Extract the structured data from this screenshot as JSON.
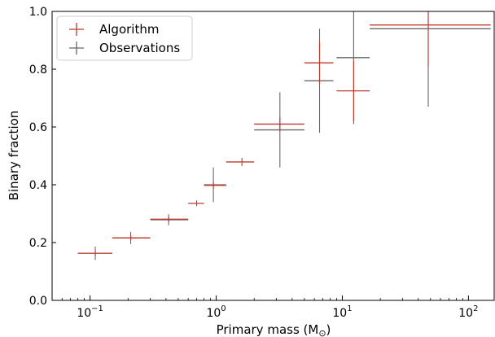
{
  "chart_data": {
    "type": "scatter",
    "xlabel_main": "Primary mass (M",
    "xlabel_sub": "⊙",
    "xlabel_end": ")",
    "ylabel": "Binary fraction",
    "xscale": "log",
    "xlim": [
      0.05,
      160
    ],
    "ylim": [
      0,
      1.0
    ],
    "xticks": [
      0.1,
      1,
      10,
      100
    ],
    "xtick_labels": [
      {
        "base": "10",
        "exp": "−1"
      },
      {
        "base": "10",
        "exp": "0"
      },
      {
        "base": "10",
        "exp": "1"
      },
      {
        "base": "10",
        "exp": "2"
      }
    ],
    "yticks": [
      0.0,
      0.2,
      0.4,
      0.6,
      0.8,
      1.0
    ],
    "ytick_labels": [
      "0.0",
      "0.2",
      "0.4",
      "0.6",
      "0.8",
      "1.0"
    ],
    "legend_position": "top-left",
    "grid": false,
    "series": [
      {
        "name": "Algorithm",
        "color": "#c0392b",
        "points": [
          {
            "x": 0.11,
            "y": 0.163,
            "xlo": 0.08,
            "xhi": 0.15,
            "ylo": 0.155,
            "yhi": 0.171
          },
          {
            "x": 0.21,
            "y": 0.216,
            "xlo": 0.15,
            "xhi": 0.3,
            "ylo": 0.208,
            "yhi": 0.224
          },
          {
            "x": 0.42,
            "y": 0.281,
            "xlo": 0.3,
            "xhi": 0.6,
            "ylo": 0.272,
            "yhi": 0.29
          },
          {
            "x": 0.7,
            "y": 0.336,
            "xlo": 0.6,
            "xhi": 0.8,
            "ylo": 0.326,
            "yhi": 0.346
          },
          {
            "x": 0.95,
            "y": 0.398,
            "xlo": 0.8,
            "xhi": 1.2,
            "ylo": 0.386,
            "yhi": 0.41
          },
          {
            "x": 1.6,
            "y": 0.479,
            "xlo": 1.2,
            "xhi": 2.0,
            "ylo": 0.465,
            "yhi": 0.493
          },
          {
            "x": 3.2,
            "y": 0.61,
            "xlo": 2.0,
            "xhi": 5.0,
            "ylo": 0.585,
            "yhi": 0.635
          },
          {
            "x": 6.6,
            "y": 0.822,
            "xlo": 5.0,
            "xhi": 8.5,
            "ylo": 0.75,
            "yhi": 0.895
          },
          {
            "x": 12.3,
            "y": 0.725,
            "xlo": 9.0,
            "xhi": 16.5,
            "ylo": 0.62,
            "yhi": 0.83
          },
          {
            "x": 48,
            "y": 0.953,
            "xlo": 16.5,
            "xhi": 150,
            "ylo": 0.81,
            "yhi": 1.0
          }
        ]
      },
      {
        "name": "Observations",
        "color": "#666666",
        "points": [
          {
            "x": 0.11,
            "y": 0.163,
            "xlo": 0.08,
            "xhi": 0.15,
            "ylo": 0.14,
            "yhi": 0.186
          },
          {
            "x": 0.21,
            "y": 0.216,
            "xlo": 0.15,
            "xhi": 0.3,
            "ylo": 0.195,
            "yhi": 0.237
          },
          {
            "x": 0.42,
            "y": 0.279,
            "xlo": 0.3,
            "xhi": 0.6,
            "ylo": 0.26,
            "yhi": 0.298
          },
          {
            "x": 0.95,
            "y": 0.4,
            "xlo": 0.8,
            "xhi": 1.2,
            "ylo": 0.34,
            "yhi": 0.46
          },
          {
            "x": 3.2,
            "y": 0.59,
            "xlo": 2.0,
            "xhi": 5.0,
            "ylo": 0.46,
            "yhi": 0.72
          },
          {
            "x": 6.6,
            "y": 0.76,
            "xlo": 5.0,
            "xhi": 8.5,
            "ylo": 0.58,
            "yhi": 0.94
          },
          {
            "x": 12.3,
            "y": 0.84,
            "xlo": 9.0,
            "xhi": 16.5,
            "ylo": 0.61,
            "yhi": 1.0
          },
          {
            "x": 48,
            "y": 0.94,
            "xlo": 16.5,
            "xhi": 150,
            "ylo": 0.67,
            "yhi": 1.0
          }
        ]
      }
    ]
  }
}
